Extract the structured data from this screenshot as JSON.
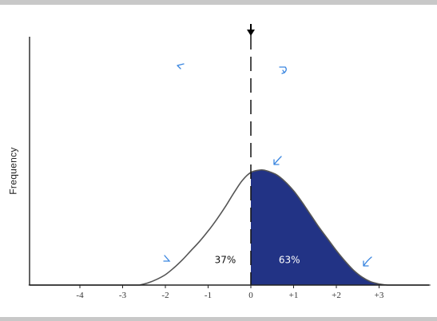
{
  "chart_data": {
    "type": "area",
    "title": "",
    "xlabel": "",
    "ylabel": "Frequency",
    "xlim": [
      -5.2,
      4.2
    ],
    "x_ticks": [
      {
        "value": -4,
        "label": "-4"
      },
      {
        "value": -3,
        "label": "-3"
      },
      {
        "value": -2,
        "label": "-2"
      },
      {
        "value": -1,
        "label": "-1"
      },
      {
        "value": 0,
        "label": "0"
      },
      {
        "value": 1,
        "label": "+1"
      },
      {
        "value": 2,
        "label": "+2"
      },
      {
        "value": 3,
        "label": "+3"
      }
    ],
    "curve": {
      "x": [
        -2.6,
        -2.4,
        -2.2,
        -2.0,
        -1.8,
        -1.6,
        -1.4,
        -1.2,
        -1.0,
        -0.8,
        -0.6,
        -0.4,
        -0.2,
        0.0,
        0.2,
        0.3,
        0.4,
        0.6,
        0.8,
        1.0,
        1.2,
        1.4,
        1.6,
        1.8,
        2.0,
        2.2,
        2.4,
        2.6,
        2.8,
        3.0,
        3.2
      ],
      "y": [
        0.0,
        0.02,
        0.05,
        0.09,
        0.15,
        0.22,
        0.3,
        0.38,
        0.47,
        0.57,
        0.68,
        0.8,
        0.91,
        0.98,
        1.0,
        1.0,
        0.99,
        0.96,
        0.9,
        0.82,
        0.72,
        0.61,
        0.5,
        0.4,
        0.3,
        0.21,
        0.13,
        0.07,
        0.03,
        0.01,
        0.0
      ]
    },
    "shaded_from_x": 0,
    "shade_color": "#223385",
    "areas": [
      {
        "label": "37%",
        "x": -0.6,
        "y": 0.22
      },
      {
        "label": "63%",
        "x": 0.9,
        "y": 0.22
      }
    ],
    "divider_x": 0,
    "grid": false,
    "legend": "none"
  }
}
